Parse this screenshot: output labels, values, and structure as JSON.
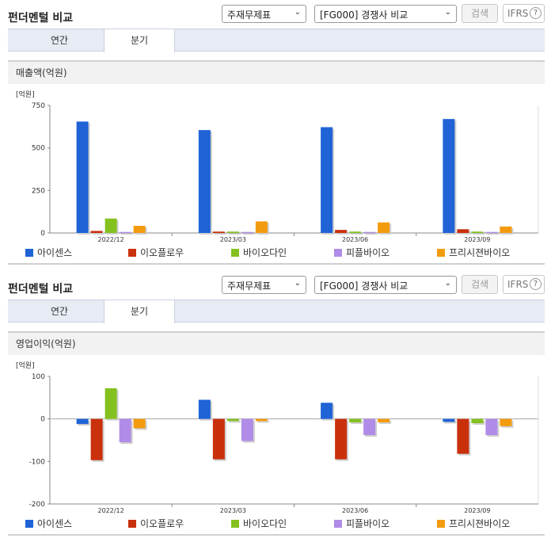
{
  "colors": {
    "아이센스": "#1f63d6",
    "이오플로우": "#c9300c",
    "바이오다인": "#84c11f",
    "피플바이오": "#b08ce8",
    "프리시젼바이오": "#f39b0e"
  },
  "panels": [
    {
      "title": "펀더멘털 비교",
      "select1": "주재무제표",
      "select2": "[FG000] 경쟁사 비교",
      "search_label": "검색",
      "ifrs_label": "IFRS",
      "help_icon": "?",
      "tabs": [
        "연간",
        "분기"
      ],
      "active_tab": "분기",
      "chart_title": "매출액(억원)"
    },
    {
      "title": "펀더멘털 비교",
      "select1": "주재무제표",
      "select2": "[FG000] 경쟁사 비교",
      "search_label": "검색",
      "ifrs_label": "IFRS",
      "help_icon": "?",
      "tabs": [
        "연간",
        "분기"
      ],
      "active_tab": "분기",
      "chart_title": "영업이익(억원)"
    }
  ],
  "chart_data": [
    {
      "type": "bar",
      "title": "매출액(억원)",
      "ylabel": "[억원]",
      "ylim": [
        0,
        750
      ],
      "yticks": [
        0,
        250,
        500,
        750
      ],
      "categories": [
        "2022/12",
        "2023/03",
        "2023/06",
        "2023/09"
      ],
      "series": [
        {
          "name": "아이센스",
          "values": [
            655,
            605,
            622,
            670
          ]
        },
        {
          "name": "이오플로우",
          "values": [
            12,
            8,
            18,
            22
          ]
        },
        {
          "name": "바이오다인",
          "values": [
            85,
            8,
            8,
            8
          ]
        },
        {
          "name": "피플바이오",
          "values": [
            6,
            6,
            6,
            6
          ]
        },
        {
          "name": "프리시젼바이오",
          "values": [
            42,
            68,
            62,
            38
          ]
        }
      ],
      "legend": "bottom",
      "grid": false
    },
    {
      "type": "bar",
      "title": "영업이익(억원)",
      "ylabel": "[억원]",
      "ylim": [
        -200,
        100
      ],
      "yticks": [
        -200,
        -100,
        0,
        100
      ],
      "categories": [
        "2022/12",
        "2023/03",
        "2023/06",
        "2023/09"
      ],
      "series": [
        {
          "name": "아이센스",
          "values": [
            -12,
            45,
            38,
            -7
          ]
        },
        {
          "name": "이오플로우",
          "values": [
            -97,
            -95,
            -95,
            -82
          ]
        },
        {
          "name": "바이오다인",
          "values": [
            72,
            -5,
            -8,
            -10
          ]
        },
        {
          "name": "피플바이오",
          "values": [
            -55,
            -52,
            -38,
            -38
          ]
        },
        {
          "name": "프리시젼바이오",
          "values": [
            -22,
            -5,
            -8,
            -17
          ]
        }
      ],
      "legend": "bottom",
      "grid": false
    }
  ]
}
